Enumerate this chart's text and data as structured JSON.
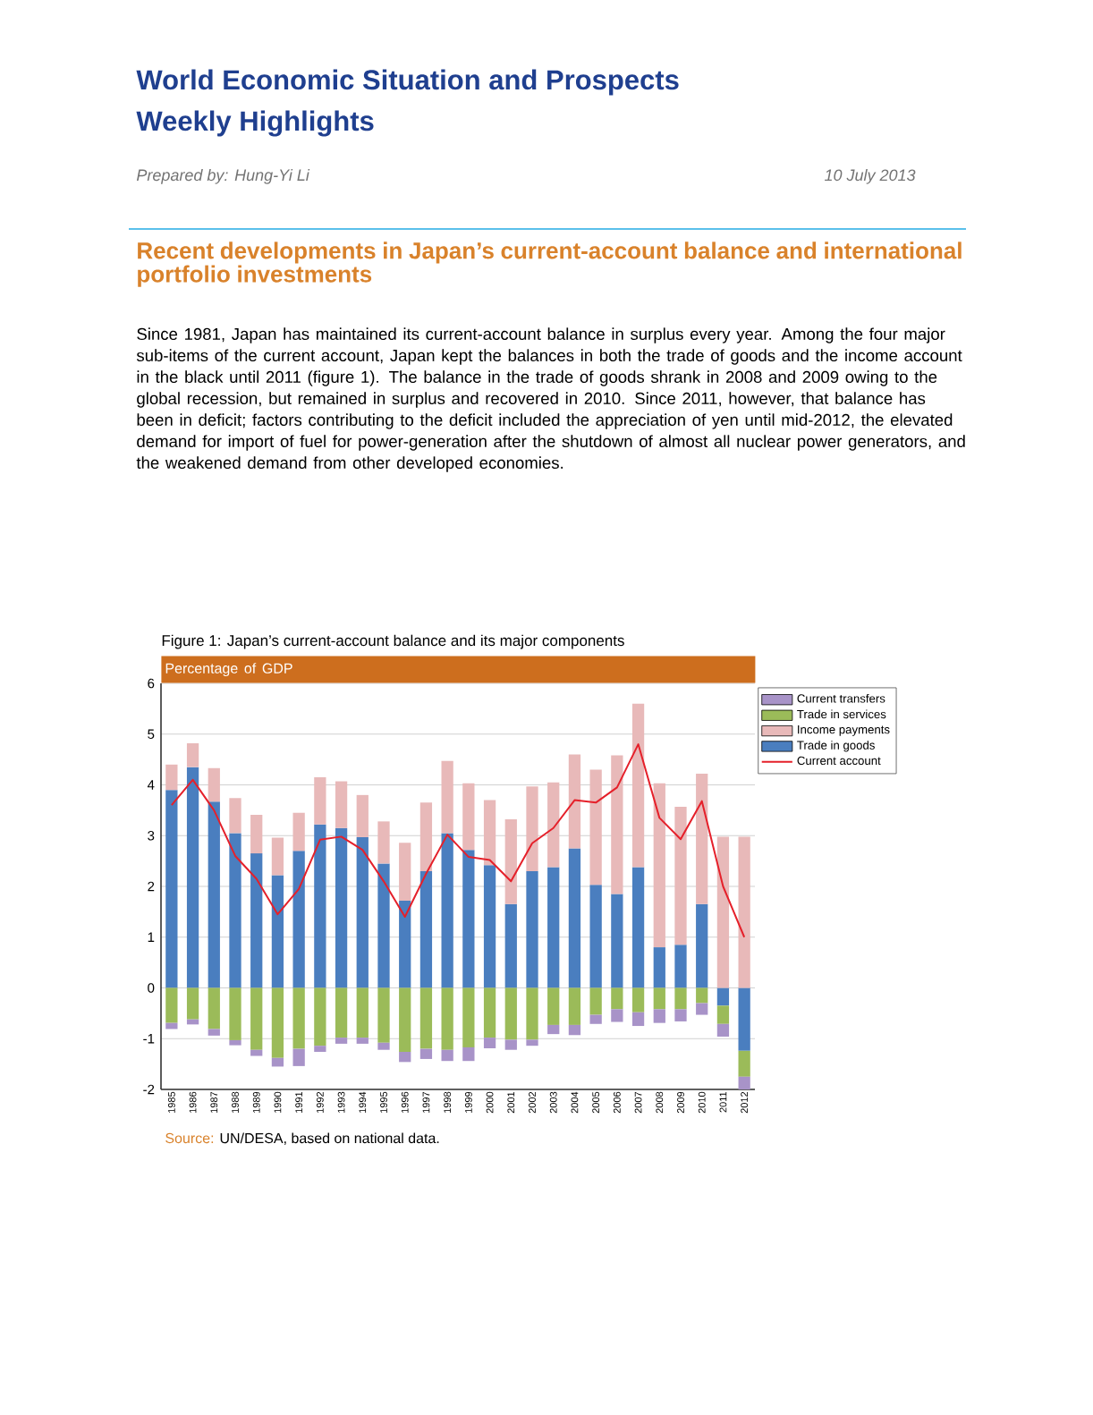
{
  "chart_data": {
    "type": "bar",
    "stacked": true,
    "title": "Figure 1: Japan’s current-account balance and its major components",
    "ylabel": "Percentage of GDP",
    "annotations": [
      "World Economic Situation and Prospects",
      "Weekly Highlights",
      "Prepared by: Hung-Yi Li",
      "10 July 2013",
      "Recent developments in Japan’s current-account balance and international portfolio investments",
      "Since 1981, Japan has maintained its current-account balance in surplus every year. Among the four major sub-items of the current account, Japan kept the balances in both the trade of goods and the income account in the black until 2011 (figure 1). The balance in the trade of goods shrank in 2008 and 2009 owing to the global recession, but remained in surplus and recovered in 2010. Since 2011, however, that balance has been in deficit; factors contributing to the deficit included the appreciation of yen until mid-2012, the elevated demand for import of fuel for power-generation after the shutdown of almost all nuclear power generators, and the weakened demand from other developed economies.",
      "Source:",
      "UN/DESA, based on national data."
    ],
    "categories": [
      "1985",
      "1986",
      "1987",
      "1988",
      "1989",
      "1990",
      "1991",
      "1992",
      "1993",
      "1994",
      "1995",
      "1996",
      "1997",
      "1998",
      "1999",
      "2000",
      "2001",
      "2002",
      "2003",
      "2004",
      "2005",
      "2006",
      "2007",
      "2008",
      "2009",
      "2010",
      "2011",
      "2012"
    ],
    "series": [
      {
        "name": "Trade in goods",
        "color": "#4a7ebf",
        "values": [
          3.9,
          4.35,
          3.67,
          3.05,
          2.65,
          2.22,
          2.7,
          3.22,
          3.15,
          2.97,
          2.45,
          1.72,
          2.3,
          3.05,
          2.72,
          2.42,
          1.65,
          2.3,
          2.38,
          2.75,
          2.03,
          1.85,
          2.38,
          0.8,
          0.85,
          1.65,
          -0.35,
          -1.24
        ]
      },
      {
        "name": "Income payments",
        "color": "#e8b9b9",
        "values": [
          0.5,
          0.47,
          0.66,
          0.69,
          0.76,
          0.74,
          0.75,
          0.93,
          0.92,
          0.83,
          0.83,
          1.14,
          1.35,
          1.42,
          1.31,
          1.28,
          1.67,
          1.67,
          1.67,
          1.85,
          2.27,
          2.73,
          3.22,
          3.23,
          2.72,
          2.57,
          2.98,
          2.98
        ]
      },
      {
        "name": "Trade in services",
        "color": "#9bbb59",
        "values": [
          -0.69,
          -0.62,
          -0.81,
          -1.03,
          -1.22,
          -1.38,
          -1.2,
          -1.14,
          -0.98,
          -0.98,
          -1.08,
          -1.26,
          -1.2,
          -1.22,
          -1.17,
          -0.98,
          -1.02,
          -1.02,
          -0.73,
          -0.73,
          -0.53,
          -0.42,
          -0.48,
          -0.42,
          -0.42,
          -0.3,
          -0.36,
          -0.51
        ]
      },
      {
        "name": "Current transfers",
        "color": "#a893c8",
        "values": [
          -0.12,
          -0.1,
          -0.13,
          -0.1,
          -0.12,
          -0.17,
          -0.34,
          -0.12,
          -0.12,
          -0.12,
          -0.14,
          -0.2,
          -0.2,
          -0.22,
          -0.27,
          -0.21,
          -0.2,
          -0.12,
          -0.18,
          -0.2,
          -0.18,
          -0.25,
          -0.27,
          -0.27,
          -0.24,
          -0.23,
          -0.25,
          -0.25
        ]
      },
      {
        "name": "Current account",
        "type": "line",
        "color": "#e5202a",
        "values": [
          3.6,
          4.1,
          3.5,
          2.6,
          2.15,
          1.45,
          1.95,
          2.92,
          2.98,
          2.72,
          2.1,
          1.4,
          2.25,
          3.02,
          2.58,
          2.52,
          2.1,
          2.85,
          3.15,
          3.7,
          3.65,
          3.95,
          4.8,
          3.35,
          2.93,
          3.68,
          2.0,
          1.0
        ]
      }
    ],
    "ylim": [
      -2,
      6
    ],
    "yticks": [
      -2,
      -1,
      0,
      1,
      2,
      3,
      4,
      5,
      6
    ],
    "grid": "y",
    "legend": "right"
  }
}
